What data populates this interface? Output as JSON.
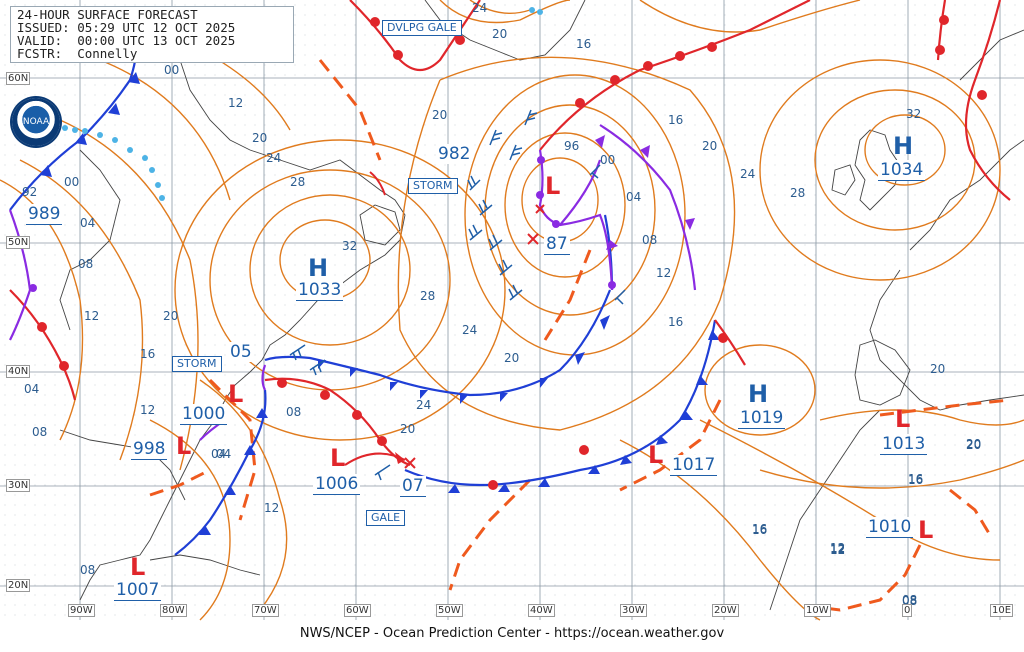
{
  "header": {
    "title": "24-HOUR SURFACE FORECAST",
    "issued": "ISSUED: 05:29 UTC 12 OCT 2025",
    "valid": "VALID:  00:00 UTC 13 OCT 2025",
    "forecaster": "FCSTR:  Connelly"
  },
  "logo_text": "NOAA",
  "footer": "NWS/NCEP - Ocean Prediction Center - https://ocean.weather.gov",
  "warnings": [
    "DVLPG GALE",
    "STORM",
    "STORM",
    "GALE"
  ],
  "highs": [
    {
      "symbol": "H",
      "pressure": "1033"
    },
    {
      "symbol": "H",
      "pressure": "1034"
    },
    {
      "symbol": "H",
      "pressure": "1019"
    }
  ],
  "lows": [
    {
      "symbol": "L",
      "pressure": "87"
    },
    {
      "symbol": "L",
      "pressure": "982"
    },
    {
      "symbol": "L",
      "pressure": "989"
    },
    {
      "symbol": "L",
      "pressure": "1000"
    },
    {
      "symbol": "L",
      "pressure": "998"
    },
    {
      "symbol": "L",
      "pressure": "1006"
    },
    {
      "symbol": "L",
      "pressure": "07"
    },
    {
      "symbol": "L",
      "pressure": "1017"
    },
    {
      "symbol": "L",
      "pressure": "1013"
    },
    {
      "symbol": "L",
      "pressure": "1010"
    },
    {
      "symbol": "L",
      "pressure": "1007"
    },
    {
      "symbol": "L",
      "pressure": "05"
    }
  ],
  "isobar_labels": [
    "24",
    "20",
    "16",
    "00",
    "12",
    "20",
    "24",
    "28",
    "32",
    "28",
    "24",
    "20",
    "16",
    "20",
    "24",
    "28",
    "32",
    "20",
    "16",
    "12",
    "08",
    "04",
    "00",
    "96",
    "04",
    "08",
    "12",
    "16",
    "20",
    "24",
    "20",
    "12",
    "08",
    "04",
    "00",
    "92",
    "04",
    "08",
    "12",
    "16",
    "20",
    "08",
    "04",
    "12",
    "16",
    "12",
    "20",
    "16",
    "20",
    "16",
    "12",
    "08",
    "08"
  ],
  "latitude_labels": [
    "60N",
    "50N",
    "40N",
    "30N",
    "20N"
  ],
  "longitude_labels": [
    "90W",
    "80W",
    "70W",
    "60W",
    "50W",
    "40W",
    "30W",
    "20W",
    "10W",
    "0",
    "10E"
  ],
  "colors": {
    "isobar": "#e07b1e",
    "cold_front": "#1f3fd6",
    "warm_front": "#e0262b",
    "occluded_front": "#8a2be2",
    "trough": "#ef5a1e",
    "text_blue": "#1f5fa8"
  }
}
